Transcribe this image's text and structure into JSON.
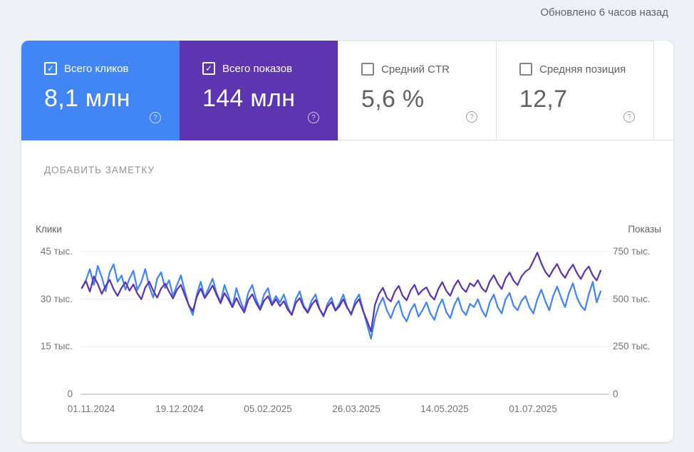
{
  "header": {
    "updated": "Обновлено 6 часов назад"
  },
  "cards": [
    {
      "id": "total-clicks",
      "label": "Всего кликов",
      "value": "8,1 млн",
      "checked": true,
      "bg": "#4285f4"
    },
    {
      "id": "total-impressions",
      "label": "Всего показов",
      "value": "144 млн",
      "checked": true,
      "bg": "#5e35b1"
    },
    {
      "id": "average-ctr",
      "label": "Средний CTR",
      "value": "5,6 %",
      "checked": false,
      "bg": null
    },
    {
      "id": "average-position",
      "label": "Средняя позиция",
      "value": "12,7",
      "checked": false,
      "bg": null
    }
  ],
  "icons": {
    "help": "?",
    "check": "✓"
  },
  "toolbar": {
    "add_note_label": "ДОБАВИТЬ ЗАМЕТКУ"
  },
  "chart_data": {
    "type": "line",
    "grid": true,
    "left_axis": {
      "title": "Клики",
      "ticks": [
        "0",
        "15 тыс.",
        "30 тыс.",
        "45 тыс."
      ],
      "max": 45,
      "unit": "тыс."
    },
    "right_axis": {
      "title": "Показы",
      "ticks": [
        "0",
        "250 тыс.",
        "500 тыс.",
        "750 тыс."
      ],
      "max": 750,
      "unit": "тыс."
    },
    "x_ticks": [
      "01.11.2024",
      "19.12.2024",
      "05.02.2025",
      "26.03.2025",
      "14.05.2025",
      "01.07.2025"
    ],
    "series": [
      {
        "name": "Клики",
        "axis": "left",
        "color": "#4285f4",
        "unit": "тыс.",
        "values": [
          33.5,
          36,
          39.5,
          34.5,
          40.5,
          37,
          32.5,
          38.5,
          41,
          35.5,
          37.5,
          33,
          36.5,
          39,
          33,
          35.5,
          39.5,
          34,
          30.5,
          36.5,
          38.5,
          33.5,
          36,
          31,
          34.5,
          37.5,
          32.5,
          28,
          25,
          31.5,
          35.5,
          30.5,
          33.5,
          36.5,
          32,
          29,
          34.5,
          31,
          27.5,
          33.5,
          29.5,
          26.5,
          32,
          34.5,
          30,
          27,
          31.5,
          33.5,
          28.5,
          31,
          29,
          31.5,
          27.5,
          25,
          30,
          32.5,
          28,
          26,
          29.5,
          31.5,
          27,
          24.5,
          28.5,
          30.5,
          26.5,
          28.5,
          31.5,
          27.5,
          25,
          29.5,
          31.5,
          26.5,
          22,
          17.5,
          24,
          28,
          30.5,
          26.5,
          24,
          27.5,
          29.5,
          25,
          23,
          26.5,
          28.5,
          24.5,
          26.5,
          29,
          25.5,
          23.5,
          27.5,
          30,
          26,
          24,
          28,
          30.5,
          26.5,
          25,
          28.5,
          27.5,
          30,
          26.5,
          24.5,
          29,
          31.5,
          27.5,
          25.5,
          30,
          32,
          28,
          26.5,
          29.5,
          31,
          27.5,
          25.5,
          30,
          33,
          29.5,
          26.5,
          31,
          34,
          30.5,
          27.5,
          32,
          35,
          30.5,
          28,
          26.5,
          31.5,
          35.5,
          29,
          32.5
        ]
      },
      {
        "name": "Показы",
        "axis": "right",
        "color": "#5e35b1",
        "unit": "тыс.",
        "values": [
          560,
          595,
          540,
          620,
          580,
          528,
          570,
          602,
          552,
          518,
          560,
          590,
          545,
          578,
          530,
          500,
          562,
          592,
          545,
          508,
          556,
          582,
          540,
          504,
          550,
          576,
          520,
          468,
          438,
          512,
          556,
          506,
          536,
          572,
          524,
          478,
          532,
          498,
          458,
          506,
          464,
          430,
          496,
          526,
          480,
          444,
          492,
          516,
          468,
          500,
          464,
          490,
          444,
          418,
          480,
          506,
          458,
          428,
          470,
          496,
          448,
          414,
          460,
          486,
          440,
          462,
          500,
          454,
          424,
          472,
          500,
          438,
          388,
          330,
          470,
          528,
          560,
          508,
          488,
          540,
          570,
          518,
          494,
          546,
          576,
          524,
          548,
          562,
          520,
          498,
          554,
          590,
          544,
          518,
          568,
          600,
          558,
          538,
          584,
          568,
          600,
          558,
          538,
          594,
          626,
          584,
          554,
          610,
          640,
          598,
          574,
          620,
          645,
          660,
          700,
          745,
          690,
          645,
          618,
          655,
          685,
          640,
          612,
          652,
          682,
          638,
          606,
          648,
          672,
          626,
          598,
          650
        ]
      }
    ]
  }
}
